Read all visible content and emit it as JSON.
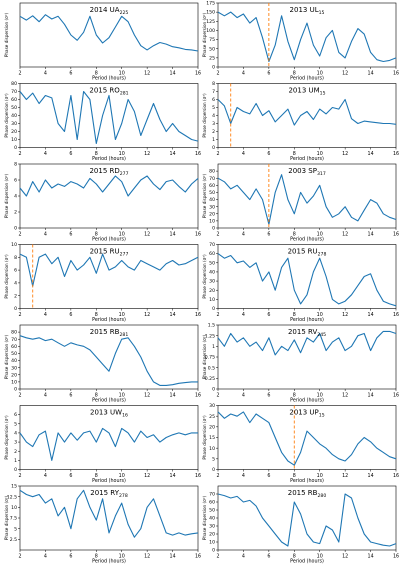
{
  "figure": {
    "xlabel": "Period (hours)",
    "ylabel_unit_text": "Phase dispersion (σ²)"
  },
  "chart_data": [
    {
      "type": "line",
      "title": "2014 UA",
      "title_sub": "225",
      "ylabel": "Phase dispersion (σ²)",
      "xlim": [
        2,
        16
      ],
      "ylim": [
        0,
        12
      ],
      "yticks": [],
      "xlabel": "Period (hours)",
      "x": [
        2,
        2.5,
        3,
        3.5,
        4,
        4.5,
        5,
        5.5,
        6,
        6.5,
        7,
        7.5,
        8,
        8.5,
        9,
        9.5,
        10,
        10.5,
        11,
        11.5,
        12,
        12.5,
        13,
        13.5,
        14,
        14.5,
        15,
        15.5,
        16
      ],
      "series": [
        {
          "values": [
            9.5,
            8.8,
            9.6,
            8.5,
            9.8,
            9.0,
            9.5,
            8.0,
            6.0,
            5.0,
            6.5,
            9.5,
            6.0,
            4.5,
            5.5,
            7.5,
            9.5,
            8.5,
            6.0,
            4.0,
            3.2,
            4.0,
            4.6,
            4.3,
            3.8,
            3.6,
            3.3,
            3.2,
            3.0
          ]
        }
      ],
      "marker": null
    },
    {
      "type": "line",
      "title": "2013 UL",
      "title_sub": "15",
      "ylabel": "Phase dispersion (σ²)",
      "xlim": [
        2,
        16
      ],
      "ylim": [
        0,
        175
      ],
      "yticks": [
        0,
        25,
        50,
        75,
        100,
        125,
        150,
        175
      ],
      "xlabel": "Period (hours)",
      "x": [
        2,
        2.5,
        3,
        3.5,
        4,
        4.5,
        5,
        5.5,
        6,
        6.5,
        7,
        7.5,
        8,
        8.5,
        9,
        9.5,
        10,
        10.5,
        11,
        11.5,
        12,
        12.5,
        13,
        13.5,
        14,
        14.5,
        15,
        15.5,
        16
      ],
      "series": [
        {
          "values": [
            150,
            140,
            150,
            135,
            145,
            120,
            135,
            80,
            15,
            60,
            140,
            70,
            20,
            75,
            120,
            60,
            30,
            80,
            100,
            40,
            25,
            70,
            105,
            90,
            40,
            20,
            15,
            18,
            25
          ]
        }
      ],
      "marker": 6.0
    },
    {
      "type": "line",
      "title": "2015 RO",
      "title_sub": "281",
      "ylabel": "Phase dispersion (σ²)",
      "xlim": [
        2,
        16
      ],
      "ylim": [
        0,
        80
      ],
      "yticks": [
        0,
        10,
        20,
        30,
        40,
        50,
        60,
        70,
        80
      ],
      "xlabel": "Period (hours)",
      "x": [
        2,
        2.5,
        3,
        3.5,
        4,
        4.5,
        5,
        5.5,
        6,
        6.5,
        7,
        7.5,
        8,
        8.5,
        9,
        9.5,
        10,
        10.5,
        11,
        11.5,
        12,
        12.5,
        13,
        13.5,
        14,
        14.5,
        15,
        15.5,
        16
      ],
      "series": [
        {
          "values": [
            70,
            60,
            68,
            55,
            65,
            62,
            30,
            20,
            65,
            10,
            70,
            60,
            5,
            40,
            65,
            10,
            30,
            60,
            45,
            15,
            35,
            55,
            35,
            20,
            30,
            20,
            15,
            10,
            8
          ]
        }
      ],
      "marker": null
    },
    {
      "type": "line",
      "title": "2013 UM",
      "title_sub": "15",
      "ylabel": "Phase dispersion (σ²)",
      "xlim": [
        2,
        16
      ],
      "ylim": [
        0,
        8
      ],
      "yticks": [
        0,
        1,
        2,
        3,
        4,
        5,
        6,
        7,
        8
      ],
      "xlabel": "Period (hours)",
      "x": [
        2,
        2.5,
        3,
        3.5,
        4,
        4.5,
        5,
        5.5,
        6,
        6.5,
        7,
        7.5,
        8,
        8.5,
        9,
        9.5,
        10,
        10.5,
        11,
        11.5,
        12,
        12.5,
        13,
        13.5,
        14,
        14.5,
        15,
        15.5,
        16
      ],
      "series": [
        {
          "values": [
            6.0,
            5.2,
            3.0,
            5.0,
            4.5,
            4.2,
            5.5,
            4.0,
            4.6,
            3.2,
            4.0,
            4.8,
            2.8,
            4.0,
            4.5,
            3.5,
            4.8,
            4.2,
            5.0,
            4.8,
            6.0,
            3.6,
            3.0,
            3.3,
            3.2,
            3.1,
            3.0,
            3.0,
            2.9
          ]
        }
      ],
      "marker": 3.0
    },
    {
      "type": "line",
      "title": "2015 RD",
      "title_sub": "277",
      "ylabel": "Phase dispersion (σ²)",
      "xlim": [
        2,
        16
      ],
      "ylim": [
        0,
        8
      ],
      "yticks": [
        0,
        2,
        4,
        6,
        8
      ],
      "xlabel": "Period (hours)",
      "x": [
        2,
        2.5,
        3,
        3.5,
        4,
        4.5,
        5,
        5.5,
        6,
        6.5,
        7,
        7.5,
        8,
        8.5,
        9,
        9.5,
        10,
        10.5,
        11,
        11.5,
        12,
        12.5,
        13,
        13.5,
        14,
        14.5,
        15,
        15.5,
        16
      ],
      "series": [
        {
          "values": [
            5.0,
            4.0,
            5.8,
            4.5,
            6.0,
            5.0,
            5.5,
            5.2,
            5.8,
            5.5,
            5.0,
            6.2,
            5.5,
            4.5,
            5.5,
            6.5,
            5.8,
            4.0,
            5.0,
            6.0,
            6.5,
            5.5,
            4.8,
            5.8,
            6.0,
            5.2,
            4.5,
            5.5,
            6.2
          ]
        }
      ],
      "marker": null
    },
    {
      "type": "line",
      "title": "2003 SP",
      "title_sub": "317",
      "ylabel": "Phase dispersion (σ²)",
      "xlim": [
        2,
        16
      ],
      "ylim": [
        0,
        90
      ],
      "yticks": [
        0,
        10,
        20,
        30,
        40,
        50,
        60,
        70,
        80
      ],
      "xlabel": "Period (hours)",
      "x": [
        2,
        2.5,
        3,
        3.5,
        4,
        4.5,
        5,
        5.5,
        6,
        6.5,
        7,
        7.5,
        8,
        8.5,
        9,
        9.5,
        10,
        10.5,
        11,
        11.5,
        12,
        12.5,
        13,
        13.5,
        14,
        14.5,
        15,
        15.5,
        16
      ],
      "series": [
        {
          "values": [
            70,
            65,
            55,
            60,
            50,
            40,
            55,
            40,
            5,
            50,
            75,
            40,
            20,
            50,
            35,
            45,
            60,
            30,
            15,
            20,
            30,
            15,
            10,
            25,
            40,
            35,
            20,
            15,
            12
          ]
        }
      ],
      "marker": 6.0
    },
    {
      "type": "line",
      "title": "2015 RU",
      "title_sub": "277",
      "ylabel": "Phase dispersion (σ²)",
      "xlim": [
        2,
        16
      ],
      "ylim": [
        0,
        10
      ],
      "yticks": [
        0,
        2,
        4,
        6,
        8,
        10
      ],
      "xlabel": "Period (hours)",
      "x": [
        2,
        2.5,
        3,
        3.5,
        4,
        4.5,
        5,
        5.5,
        6,
        6.5,
        7,
        7.5,
        8,
        8.5,
        9,
        9.5,
        10,
        10.5,
        11,
        11.5,
        12,
        12.5,
        13,
        13.5,
        14,
        14.5,
        15,
        15.5,
        16
      ],
      "series": [
        {
          "values": [
            8.5,
            8.0,
            3.5,
            8.0,
            8.5,
            7.0,
            8.0,
            5.0,
            7.5,
            6.0,
            6.8,
            8.0,
            5.5,
            8.5,
            6.0,
            6.5,
            7.5,
            6.5,
            6.0,
            7.5,
            7.0,
            6.5,
            6.0,
            7.0,
            7.5,
            6.8,
            7.0,
            7.5,
            8.0
          ]
        }
      ],
      "marker": 3.0
    },
    {
      "type": "line",
      "title": "2015 RU",
      "title_sub": "278",
      "ylabel": "Phase dispersion (σ²)",
      "xlim": [
        2,
        16
      ],
      "ylim": [
        0,
        70
      ],
      "yticks": [
        0,
        10,
        20,
        30,
        40,
        50,
        60,
        70
      ],
      "xlabel": "Period (hours)",
      "x": [
        2,
        2.5,
        3,
        3.5,
        4,
        4.5,
        5,
        5.5,
        6,
        6.5,
        7,
        7.5,
        8,
        8.5,
        9,
        9.5,
        10,
        10.5,
        11,
        11.5,
        12,
        12.5,
        13,
        13.5,
        14,
        14.5,
        15,
        15.5,
        16
      ],
      "series": [
        {
          "values": [
            60,
            55,
            58,
            50,
            52,
            45,
            50,
            30,
            40,
            20,
            45,
            55,
            20,
            5,
            15,
            40,
            55,
            35,
            10,
            5,
            8,
            15,
            25,
            35,
            38,
            20,
            8,
            5,
            3
          ]
        }
      ],
      "marker": null
    },
    {
      "type": "line",
      "title": "2015 RB",
      "title_sub": "281",
      "ylabel": "Phase dispersion (σ²)",
      "xlim": [
        2,
        16
      ],
      "ylim": [
        0,
        90
      ],
      "yticks": [
        0,
        10,
        20,
        30,
        40,
        50,
        60,
        70,
        80
      ],
      "xlabel": "Period (hours)",
      "x": [
        2,
        2.5,
        3,
        3.5,
        4,
        4.5,
        5,
        5.5,
        6,
        6.5,
        7,
        7.5,
        8,
        8.5,
        9,
        9.5,
        10,
        10.5,
        11,
        11.5,
        12,
        12.5,
        13,
        13.5,
        14,
        14.5,
        15,
        15.5,
        16
      ],
      "series": [
        {
          "values": [
            75,
            72,
            70,
            72,
            68,
            70,
            65,
            60,
            65,
            62,
            60,
            55,
            45,
            35,
            25,
            50,
            70,
            72,
            60,
            45,
            25,
            10,
            5,
            5,
            6,
            8,
            9,
            10,
            10
          ]
        }
      ],
      "marker": null
    },
    {
      "type": "line",
      "title": "2015 RV",
      "title_sub": "245",
      "ylabel": "Phase dispersion (σ²)",
      "xlim": [
        2,
        16
      ],
      "ylim": [
        0,
        1.5
      ],
      "yticks": [
        0,
        0.25,
        0.5,
        0.75,
        1.0,
        1.25,
        1.5
      ],
      "xlabel": "Period (hours)",
      "x": [
        2,
        2.5,
        3,
        3.5,
        4,
        4.5,
        5,
        5.5,
        6,
        6.5,
        7,
        7.5,
        8,
        8.5,
        9,
        9.5,
        10,
        10.5,
        11,
        11.5,
        12,
        12.5,
        13,
        13.5,
        14,
        14.5,
        15,
        15.5,
        16
      ],
      "series": [
        {
          "values": [
            1.2,
            1.0,
            1.3,
            1.1,
            1.2,
            1.0,
            1.1,
            0.9,
            1.2,
            0.8,
            1.0,
            0.9,
            1.15,
            0.85,
            1.2,
            1.1,
            1.3,
            0.9,
            1.1,
            1.2,
            0.9,
            1.0,
            1.25,
            1.3,
            0.9,
            1.2,
            1.35,
            1.35,
            1.3
          ]
        }
      ],
      "marker": null
    },
    {
      "type": "line",
      "title": "2013 UW",
      "title_sub": "16",
      "ylabel": "Phase dispersion (σ²)",
      "xlim": [
        2,
        16
      ],
      "ylim": [
        0,
        7
      ],
      "yticks": [
        0,
        1,
        2,
        3,
        4,
        5,
        6
      ],
      "xlabel": "Period (hours)",
      "x": [
        2,
        2.5,
        3,
        3.5,
        4,
        4.5,
        5,
        5.5,
        6,
        6.5,
        7,
        7.5,
        8,
        8.5,
        9,
        9.5,
        10,
        10.5,
        11,
        11.5,
        12,
        12.5,
        13,
        13.5,
        14,
        14.5,
        15,
        15.5,
        16
      ],
      "series": [
        {
          "values": [
            4.0,
            3.0,
            2.5,
            3.8,
            4.2,
            1.0,
            4.0,
            3.0,
            4.0,
            3.2,
            4.0,
            4.2,
            3.0,
            4.5,
            4.0,
            2.5,
            4.5,
            4.0,
            3.0,
            4.2,
            3.5,
            3.8,
            3.0,
            3.5,
            3.8,
            4.0,
            3.8,
            4.0,
            4.0
          ]
        }
      ],
      "marker": null
    },
    {
      "type": "line",
      "title": "2013 UP",
      "title_sub": "15",
      "ylabel": "Phase dispersion (σ²)",
      "xlim": [
        2,
        16
      ],
      "ylim": [
        0,
        30
      ],
      "yticks": [
        0,
        5,
        10,
        15,
        20,
        25,
        30
      ],
      "xlabel": "Period (hours)",
      "x": [
        2,
        2.5,
        3,
        3.5,
        4,
        4.5,
        5,
        5.5,
        6,
        6.5,
        7,
        7.5,
        8,
        8.5,
        9,
        9.5,
        10,
        10.5,
        11,
        11.5,
        12,
        12.5,
        13,
        13.5,
        14,
        14.5,
        15,
        15.5,
        16
      ],
      "series": [
        {
          "values": [
            27,
            24,
            26,
            25,
            27,
            22,
            26,
            24,
            22,
            15,
            8,
            4,
            2,
            8,
            18,
            15,
            12,
            10,
            7,
            5,
            4,
            7,
            12,
            15,
            13,
            10,
            8,
            6,
            5
          ]
        }
      ],
      "marker": 8.0
    },
    {
      "type": "line",
      "title": "2015 RY",
      "title_sub": "278",
      "ylabel": "Phase dispersion (σ²)",
      "xlim": [
        2,
        16
      ],
      "ylim": [
        0,
        15
      ],
      "yticks": [
        2.5,
        5.0,
        7.5,
        10.0,
        12.5,
        15.0
      ],
      "xlabel": "Period (hours)",
      "x": [
        2,
        2.5,
        3,
        3.5,
        4,
        4.5,
        5,
        5.5,
        6,
        6.5,
        7,
        7.5,
        8,
        8.5,
        9,
        9.5,
        10,
        10.5,
        11,
        11.5,
        12,
        12.5,
        13,
        13.5,
        14,
        14.5,
        15,
        15.5,
        16
      ],
      "series": [
        {
          "values": [
            14,
            13,
            12.5,
            13,
            11,
            12,
            8,
            10,
            5,
            12,
            14,
            10,
            7,
            12,
            4,
            8,
            11,
            6,
            3,
            5,
            10,
            12,
            8,
            4,
            3.5,
            4,
            3.5,
            3.8,
            4
          ]
        }
      ],
      "marker": null
    },
    {
      "type": "line",
      "title": "2015 RB",
      "title_sub": "280",
      "ylabel": "Phase dispersion (σ²)",
      "xlim": [
        2,
        16
      ],
      "ylim": [
        0,
        80
      ],
      "yticks": [
        0,
        10,
        20,
        30,
        40,
        50,
        60,
        70
      ],
      "xlabel": "Period (hours)",
      "x": [
        2,
        2.5,
        3,
        3.5,
        4,
        4.5,
        5,
        5.5,
        6,
        6.5,
        7,
        7.5,
        8,
        8.5,
        9,
        9.5,
        10,
        10.5,
        11,
        11.5,
        12,
        12.5,
        13,
        13.5,
        14,
        14.5,
        15,
        15.5,
        16
      ],
      "series": [
        {
          "values": [
            70,
            68,
            65,
            67,
            60,
            62,
            55,
            40,
            30,
            20,
            10,
            5,
            60,
            45,
            20,
            10,
            8,
            30,
            25,
            10,
            70,
            65,
            40,
            20,
            10,
            8,
            6,
            5,
            8
          ]
        }
      ],
      "marker": null
    }
  ],
  "colors": {
    "line": "#1f77b4",
    "marker": "#ff7f0e",
    "axis": "#000000"
  }
}
